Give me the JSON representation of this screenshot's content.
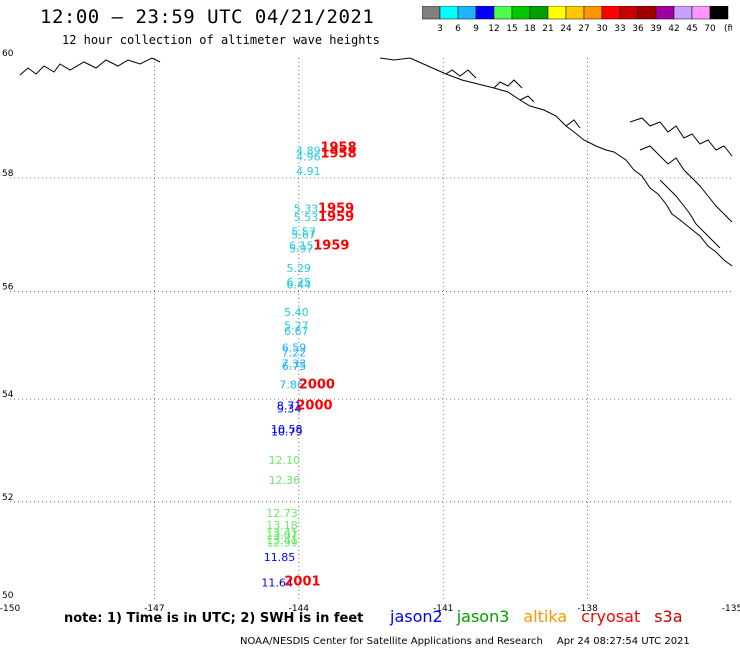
{
  "header": {
    "title": "12:00 – 23:59 UTC 04/21/2021",
    "subtitle": "12 hour collection of altimeter wave heights"
  },
  "color_scale": {
    "unit": "(ft)",
    "ticks": [
      "3",
      "6",
      "9",
      "12",
      "15",
      "18",
      "21",
      "24",
      "27",
      "30",
      "33",
      "36",
      "39",
      "42",
      "45",
      "70"
    ],
    "colors": [
      "#808080",
      "#00ffff",
      "#1eb4ff",
      "#0000ff",
      "#4cff4c",
      "#00c800",
      "#00a000",
      "#ffff00",
      "#ffc800",
      "#ff9600",
      "#ff0000",
      "#c80000",
      "#a00000",
      "#a000a0",
      "#c8a0ff",
      "#ff96ff",
      "#000000"
    ]
  },
  "map": {
    "lat_labels": [
      "60",
      "58",
      "56",
      "54",
      "52",
      "50"
    ],
    "lon_labels": [
      "-150",
      "-147",
      "-144",
      "-141",
      "-138",
      "-135"
    ],
    "grid": true,
    "land_outline": "Gulf of Alaska coastline and Alexander Archipelago"
  },
  "observations": [
    {
      "value": "4.89",
      "color": "#22ccdd",
      "lon": -143.8,
      "lat": 58.4
    },
    {
      "value": "4.96",
      "color": "#22ccdd",
      "lon": -143.8,
      "lat": 58.3
    },
    {
      "value": "4.91",
      "color": "#22ccdd",
      "lon": -143.8,
      "lat": 58.05
    },
    {
      "value": "5.33",
      "color": "#22ccdd",
      "lon": -143.85,
      "lat": 57.4
    },
    {
      "value": "5.53",
      "color": "#22ccdd",
      "lon": -143.85,
      "lat": 57.25
    },
    {
      "value": "5.57",
      "color": "#22ccdd",
      "lon": -143.9,
      "lat": 57.0
    },
    {
      "value": "5.67",
      "color": "#22ccdd",
      "lon": -143.9,
      "lat": 56.95
    },
    {
      "value": "6.15",
      "color": "#22ccdd",
      "lon": -143.95,
      "lat": 56.75
    },
    {
      "value": "5.97",
      "color": "#22ccdd",
      "lon": -143.95,
      "lat": 56.7
    },
    {
      "value": "5.29",
      "color": "#22ccdd",
      "lon": -144.0,
      "lat": 56.35
    },
    {
      "value": "6.25",
      "color": "#22ccdd",
      "lon": -144.0,
      "lat": 56.1
    },
    {
      "value": "6.44",
      "color": "#22ccdd",
      "lon": -144.0,
      "lat": 56.05
    },
    {
      "value": "5.40",
      "color": "#22ccdd",
      "lon": -144.05,
      "lat": 55.55
    },
    {
      "value": "5.27",
      "color": "#22ccdd",
      "lon": -144.05,
      "lat": 55.3
    },
    {
      "value": "6.67",
      "color": "#22ccdd",
      "lon": -144.05,
      "lat": 55.2
    },
    {
      "value": "6.59",
      "color": "#1eb4ff",
      "lon": -144.1,
      "lat": 54.9
    },
    {
      "value": "7.22",
      "color": "#1eb4ff",
      "lon": -144.1,
      "lat": 54.8
    },
    {
      "value": "7.33",
      "color": "#1eb4ff",
      "lon": -144.1,
      "lat": 54.6
    },
    {
      "value": "6.75",
      "color": "#1eb4ff",
      "lon": -144.1,
      "lat": 54.55
    },
    {
      "value": "7.86",
      "color": "#1eb4ff",
      "lon": -144.15,
      "lat": 54.2
    },
    {
      "value": "8.71",
      "color": "#0000ff",
      "lon": -144.2,
      "lat": 53.8
    },
    {
      "value": "9.34",
      "color": "#0000ff",
      "lon": -144.2,
      "lat": 53.75
    },
    {
      "value": "10.58",
      "color": "#0000ff",
      "lon": -144.25,
      "lat": 53.35
    },
    {
      "value": "10.79",
      "color": "#0000ff",
      "lon": -144.25,
      "lat": 53.3
    },
    {
      "value": "12.10",
      "color": "#66ee66",
      "lon": -144.3,
      "lat": 52.75
    },
    {
      "value": "12.36",
      "color": "#66ee66",
      "lon": -144.3,
      "lat": 52.35
    },
    {
      "value": "12.73",
      "color": "#66ee66",
      "lon": -144.35,
      "lat": 51.7
    },
    {
      "value": "13.18",
      "color": "#66ee66",
      "lon": -144.35,
      "lat": 51.45
    },
    {
      "value": "13.41",
      "color": "#66ee66",
      "lon": -144.35,
      "lat": 51.3
    },
    {
      "value": "13.07",
      "color": "#66ee66",
      "lon": -144.35,
      "lat": 51.25
    },
    {
      "value": "13.41",
      "color": "#66ee66",
      "lon": -144.35,
      "lat": 51.15
    },
    {
      "value": "12.99",
      "color": "#66ee66",
      "lon": -144.35,
      "lat": 51.1
    },
    {
      "value": "11.85",
      "color": "#0000ff",
      "lon": -144.4,
      "lat": 50.8
    },
    {
      "value": "11.64",
      "color": "#0000ff",
      "lon": -144.45,
      "lat": 50.28
    }
  ],
  "pass_times": [
    {
      "value": "1958",
      "color": "#ff0000",
      "lon": -143.55,
      "lat": 58.45
    },
    {
      "value": "1958",
      "color": "#ff0000",
      "lon": -143.55,
      "lat": 58.35
    },
    {
      "value": "1959",
      "color": "#ff0000",
      "lon": -143.6,
      "lat": 57.4
    },
    {
      "value": "1959",
      "color": "#ff0000",
      "lon": -143.6,
      "lat": 57.25
    },
    {
      "value": "1959",
      "color": "#ff0000",
      "lon": -143.7,
      "lat": 56.75
    },
    {
      "value": "2000",
      "color": "#ff0000",
      "lon": -144.0,
      "lat": 54.2
    },
    {
      "value": "2000",
      "color": "#ff0000",
      "lon": -144.05,
      "lat": 53.8
    },
    {
      "value": "2001",
      "color": "#ff0000",
      "lon": -144.3,
      "lat": 50.3
    }
  ],
  "footer": {
    "note": "note:  1) Time is in UTC;  2) SWH is in feet",
    "satellites": [
      {
        "name": "jason2",
        "color": "#0000ff"
      },
      {
        "name": "jason3",
        "color": "#00a000"
      },
      {
        "name": "altika",
        "color": "#ff9600"
      },
      {
        "name": "cryosat",
        "color": "#ff0000"
      },
      {
        "name": "s3a",
        "color": "#c80000"
      }
    ],
    "credit": "NOAA/NESDIS Center for Satellite Applications and Research",
    "generated": "Apr 24 08:27:54 UTC 2021"
  }
}
